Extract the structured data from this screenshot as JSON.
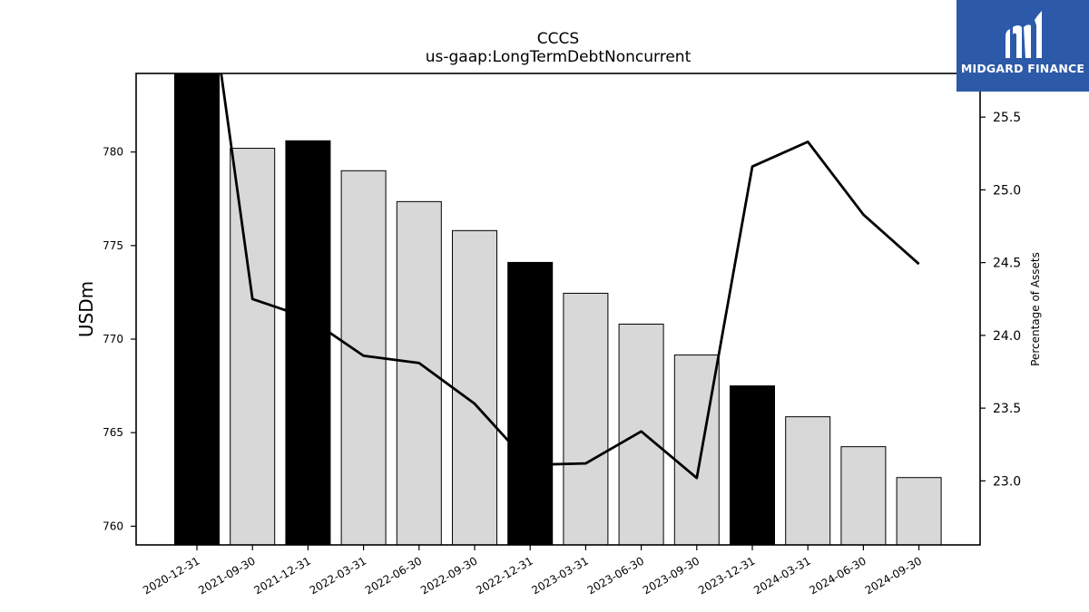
{
  "logo": {
    "text": "MIDGARD FINANCE"
  },
  "chart_data": {
    "type": "bar",
    "title": "CCCS",
    "subtitle": "us-gaap:LongTermDebtNoncurrent",
    "ylabel": "USDm",
    "ylabel_right": "Percentage of Assets",
    "categories": [
      "2020-12-31",
      "2021-09-30",
      "2021-12-31",
      "2022-03-31",
      "2022-06-30",
      "2022-09-30",
      "2022-12-31",
      "2023-03-31",
      "2023-06-30",
      "2023-09-30",
      "2023-12-31",
      "2024-03-31",
      "2024-06-30",
      "2024-09-30"
    ],
    "values": [
      784.5,
      780.2,
      780.6,
      779.0,
      777.35,
      775.8,
      774.1,
      772.45,
      770.8,
      769.15,
      767.5,
      765.85,
      764.25,
      762.6
    ],
    "bar_colors": [
      "#000000",
      "#d8d8d8",
      "#000000",
      "#d8d8d8",
      "#d8d8d8",
      "#d8d8d8",
      "#000000",
      "#d8d8d8",
      "#d8d8d8",
      "#d8d8d8",
      "#000000",
      "#d8d8d8",
      "#d8d8d8",
      "#d8d8d8"
    ],
    "ylim": [
      759.0,
      784.2
    ],
    "yticks": [
      760,
      765,
      770,
      775,
      780
    ],
    "line_series": {
      "name": "Percentage of Assets",
      "values": [
        27.0,
        24.25,
        24.12,
        23.86,
        23.81,
        23.53,
        23.11,
        23.12,
        23.34,
        23.02,
        25.16,
        25.33,
        24.83,
        24.49
      ]
    },
    "ylim_right": [
      22.56,
      25.8
    ],
    "yticks_right": [
      23.0,
      23.5,
      24.0,
      24.5,
      25.0,
      25.5
    ],
    "grid": false
  }
}
